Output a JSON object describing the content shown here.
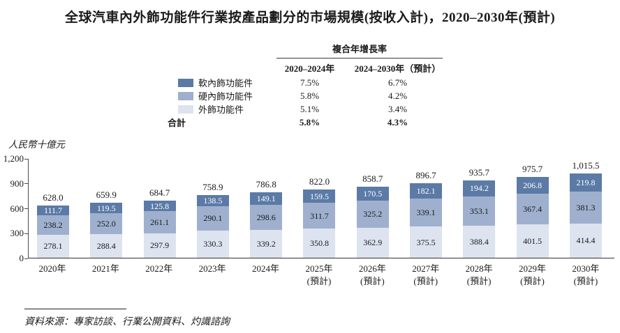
{
  "title": "全球汽車內外飾功能件行業按產品劃分的市場規模(按收入計)，2020–2030年(預計)",
  "cagr_table": {
    "header": "複合年增長率",
    "col_headers": [
      "2020–2024年",
      "2024–2030年（預計）"
    ],
    "rows": [
      {
        "label": "軟內飾功能件",
        "cagr_2020_2024": "7.5%",
        "cagr_2024_2030": "6.7%"
      },
      {
        "label": "硬內飾功能件",
        "cagr_2020_2024": "5.8%",
        "cagr_2024_2030": "4.2%"
      },
      {
        "label": "外飾功能件",
        "cagr_2020_2024": "5.1%",
        "cagr_2024_2030": "3.4%"
      },
      {
        "label": "合計",
        "cagr_2020_2024": "5.8%",
        "cagr_2024_2030": "4.3%"
      }
    ]
  },
  "chart_data": {
    "type": "bar",
    "stacked": true,
    "ylabel": "人民幣十億元",
    "ylim": [
      0,
      1200
    ],
    "grid": false,
    "legend_position": "top-left",
    "yticks": [
      {
        "value": 0,
        "label": "0"
      },
      {
        "value": 300,
        "label": "300"
      },
      {
        "value": 600,
        "label": "600"
      },
      {
        "value": 900,
        "label": "900"
      },
      {
        "value": 1200,
        "label": "1,200"
      }
    ],
    "categories": [
      {
        "label": "2020年",
        "sublabel": ""
      },
      {
        "label": "2021年",
        "sublabel": ""
      },
      {
        "label": "2022年",
        "sublabel": ""
      },
      {
        "label": "2023年",
        "sublabel": ""
      },
      {
        "label": "2024年",
        "sublabel": ""
      },
      {
        "label": "2025年",
        "sublabel": "(預計)"
      },
      {
        "label": "2026年",
        "sublabel": "(預計)"
      },
      {
        "label": "2027年",
        "sublabel": "(預計)"
      },
      {
        "label": "2028年",
        "sublabel": "(預計)"
      },
      {
        "label": "2029年",
        "sublabel": "(預計)"
      },
      {
        "label": "2030年",
        "sublabel": "(預計)"
      }
    ],
    "series": [
      {
        "name": "軟內飾功能件",
        "color": "#5b7aa6",
        "text_color": "#ffffff",
        "values": [
          111.7,
          119.5,
          125.8,
          138.5,
          149.1,
          159.5,
          170.5,
          182.1,
          194.2,
          206.8,
          219.8
        ]
      },
      {
        "name": "硬內飾功能件",
        "color": "#9eb0ce",
        "text_color": "#1a1a1a",
        "values": [
          238.2,
          252.0,
          261.1,
          290.1,
          298.6,
          311.7,
          325.2,
          339.1,
          353.1,
          367.4,
          381.3
        ]
      },
      {
        "name": "外飾功能件",
        "color": "#dde3ef",
        "text_color": "#1a1a1a",
        "values": [
          278.1,
          288.4,
          297.9,
          330.3,
          339.2,
          350.8,
          362.9,
          375.5,
          388.4,
          401.5,
          414.4
        ]
      }
    ],
    "totals": [
      628.0,
      659.9,
      684.7,
      758.9,
      786.8,
      822.0,
      858.7,
      896.7,
      935.7,
      975.7,
      1015.5
    ],
    "total_labels": [
      "628.0",
      "659.9",
      "684.7",
      "758.9",
      "786.8",
      "822.0",
      "858.7",
      "896.7",
      "935.7",
      "975.7",
      "1,015.5"
    ]
  },
  "source": "資料來源：專家訪談、行業公開資料、灼識諮詢"
}
